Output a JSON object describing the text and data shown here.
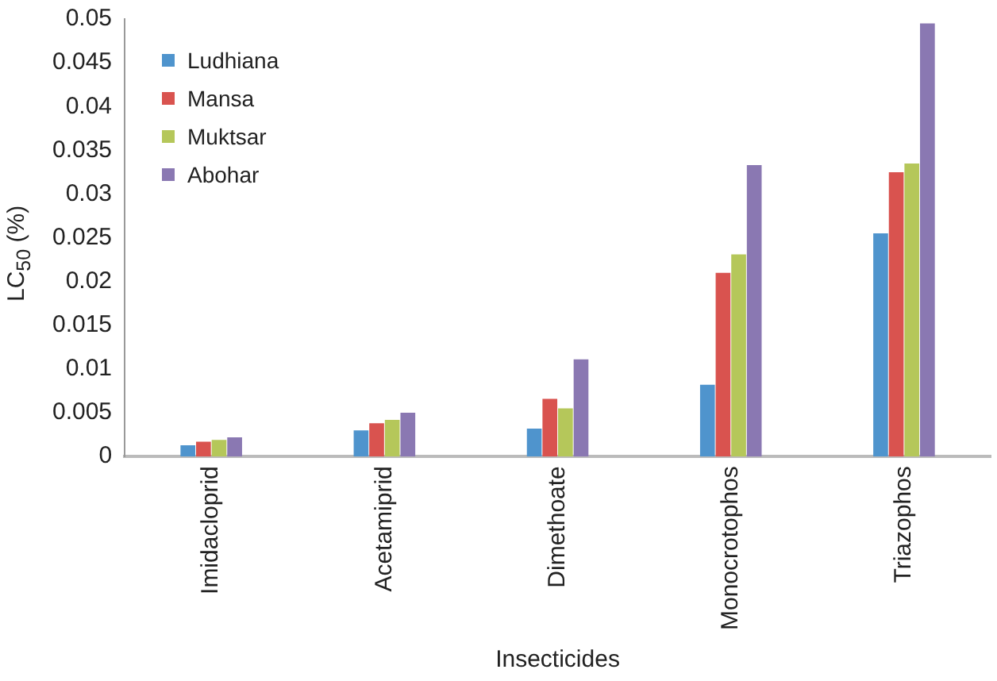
{
  "chart_data": {
    "type": "bar",
    "xlabel": "Insecticides",
    "ylabel": "LC$_{50}$ (%)",
    "categories": [
      "Imidacloprid",
      "Acetamiprid",
      "Dimethoate",
      "Monocrotophos",
      "Triazophos"
    ],
    "series": [
      {
        "name": "Ludhiana",
        "color": "#4f94cd",
        "values": [
          0.0013,
          0.003,
          0.0032,
          0.0082,
          0.0255
        ]
      },
      {
        "name": "Mansa",
        "color": "#d9534f",
        "values": [
          0.0017,
          0.0038,
          0.0066,
          0.021,
          0.0325
        ]
      },
      {
        "name": "Muktsar",
        "color": "#b5c75a",
        "values": [
          0.0019,
          0.0042,
          0.0055,
          0.0231,
          0.0335
        ]
      },
      {
        "name": "Abohar",
        "color": "#8a78b2",
        "values": [
          0.0022,
          0.005,
          0.0111,
          0.0333,
          0.0495
        ]
      }
    ],
    "ylim": [
      0,
      0.05
    ],
    "yticks": [
      0,
      0.005,
      0.01,
      0.015,
      0.02,
      0.025,
      0.03,
      0.035,
      0.04,
      0.045,
      0.05
    ],
    "grid": false,
    "legend": "top left"
  }
}
